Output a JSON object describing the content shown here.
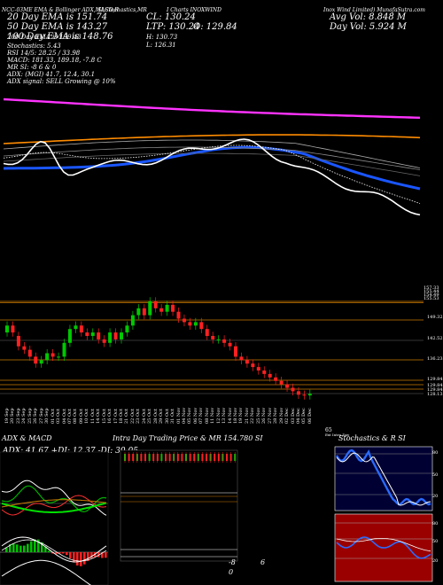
{
  "header": {
    "line1_left": "NCC-03ME EMA & Bollinger ADX,MACD,R",
    "line1_mid": "SI,Stochastics,MR",
    "line1_ticker": "I Charts INOXWIND",
    "line1_right": "Inox Wind Limited) MunafaSutra.com",
    "ema20": "20  Day  EMA  is  151.74",
    "ema50": "50  Day  EMA  is  143.27",
    "ema100": "100  Day  EMA  is  148.76",
    "ema200": "200  Day  EMA  is  159.43",
    "stoch": "Stochastics: 5.43",
    "rsi": "RSI 14/5: 28.25 / 33.98",
    "macd": "MACD: 181.33,  189.18,  -7.8  C",
    "mr": "MR           SI: -8            6  &  0",
    "adx": "ADX:            (MGI) 41.7,  12.4,  30.1",
    "adx_signal": "ADX  signal: SELL  Growing @ 10%",
    "cl": "CL: 130.24",
    "ltp": "LTP: 130.24",
    "o": "O: 129.84",
    "h": "H: 130.73",
    "l": "L: 126.31",
    "avg_vol": "Avg Vol: 8.848  M",
    "day_vol": "Day Vol: 5.924  M"
  },
  "chart_data": [
    {
      "type": "candlestick",
      "title": "I Charts INOXWIND",
      "price_levels": [
        "155.53",
        "149.32",
        "142.52",
        "136.23",
        "129.84",
        "129.84",
        "129.84",
        "128.13"
      ],
      "top_right_levels": [
        "157.33",
        "155.44",
        "154.49"
      ],
      "x": [
        "19 Sep",
        "20 Sep",
        "23 Sep",
        "24 Sep",
        "25 Sep",
        "26 Sep",
        "27 Sep",
        "30 Sep",
        "01 Oct",
        "03 Oct",
        "04 Oct",
        "07 Oct",
        "08 Oct",
        "09 Oct",
        "10 Oct",
        "11 Oct",
        "14 Oct",
        "15 Oct",
        "16 Oct",
        "17 Oct",
        "18 Oct",
        "21 Oct",
        "22 Oct",
        "23 Oct",
        "24 Oct",
        "25 Oct",
        "28 Oct",
        "29 Oct",
        "30 Oct",
        "31 Oct",
        "01 Nov",
        "04 Nov",
        "05 Nov",
        "06 Nov",
        "07 Nov",
        "08 Nov",
        "11 Nov",
        "12 Nov",
        "13 Nov",
        "14 Nov",
        "18 Nov",
        "19 Nov",
        "21 Nov",
        "22 Nov",
        "25 Nov",
        "26 Nov",
        "27 Nov",
        "28 Nov",
        "29 Nov",
        "02 Dec",
        "03 Dec",
        "04 Dec",
        "05 Dec",
        "06 Dec"
      ],
      "series": [
        {
          "open": [
            148,
            150,
            147,
            144,
            143,
            141,
            139,
            140,
            142,
            141,
            141,
            145,
            149,
            150,
            148,
            147,
            148,
            146,
            145,
            148,
            146,
            148,
            150,
            153,
            155,
            153,
            157,
            155,
            154,
            156,
            154,
            152,
            151,
            150,
            151,
            149,
            147,
            146,
            146,
            145,
            144,
            141,
            140,
            139,
            138,
            137,
            136,
            135,
            134,
            133,
            132,
            131,
            130,
            129.8
          ],
          "close": [
            150,
            148,
            144,
            143,
            141,
            139,
            140,
            142,
            141,
            141,
            145,
            149,
            150,
            148,
            147,
            148,
            146,
            145,
            148,
            146,
            148,
            150,
            153,
            155,
            153,
            157,
            155,
            154,
            156,
            154,
            152,
            151,
            150,
            151,
            149,
            147,
            146,
            146,
            145,
            144,
            141,
            140,
            139,
            138,
            137,
            136,
            135,
            134,
            133,
            132,
            131,
            130,
            129.8,
            130.24
          ]
        }
      ]
    },
    {
      "type": "line",
      "title": "ADX  & MACD",
      "adx_label": "ADX: 41.67  +DI: 12.37  -DI: 30.05",
      "levels": [
        "50",
        "25",
        "10"
      ]
    },
    {
      "type": "bar",
      "title": "Intra Day Trading Price  & MR  154.780  SI",
      "levels": [
        "-8",
        "6",
        "0"
      ]
    },
    {
      "type": "line",
      "title": "Stochastics & R         SI",
      "levels": [
        "80",
        "50",
        "20",
        "80",
        "50",
        "20"
      ],
      "stochastic": 5.43
    }
  ],
  "bottom": {
    "label": "65",
    "sublabel": "Ext Intra Day"
  },
  "colors": {
    "ema20": "#ffffff",
    "ema50": "#1a56ff",
    "ema100": "#ff8c00",
    "ema200": "#ff33ff",
    "up": "#00c800",
    "down": "#ff2020",
    "level": "#cc7a00",
    "stoch_bg": "#9a0000",
    "stoch_line": "#2a6bff"
  }
}
